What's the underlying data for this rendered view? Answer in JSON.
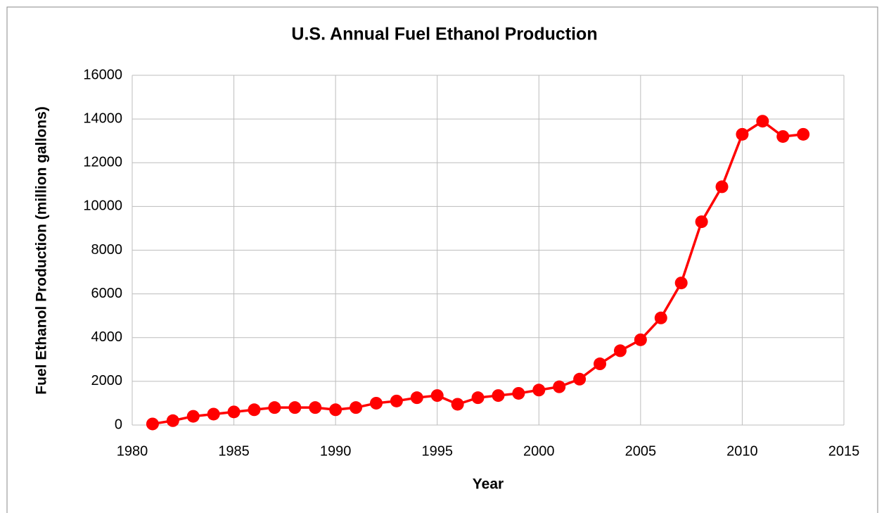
{
  "chart_data": {
    "type": "line",
    "title": "U.S. Annual Fuel Ethanol Production",
    "x_label": "Year",
    "y_label": "Fuel Ethanol Production  (million gallons)",
    "x": [
      1981,
      1982,
      1983,
      1984,
      1985,
      1986,
      1987,
      1988,
      1989,
      1990,
      1991,
      1992,
      1993,
      1994,
      1995,
      1996,
      1997,
      1998,
      1999,
      2000,
      2001,
      2002,
      2003,
      2004,
      2005,
      2006,
      2007,
      2008,
      2009,
      2010,
      2011,
      2012,
      2013
    ],
    "values": [
      50,
      200,
      400,
      500,
      600,
      700,
      800,
      800,
      800,
      700,
      800,
      1000,
      1100,
      1250,
      1350,
      950,
      1250,
      1350,
      1450,
      1600,
      1750,
      2100,
      2800,
      3400,
      3900,
      4900,
      6500,
      9300,
      10900,
      13300,
      13900,
      13200,
      13300
    ],
    "color": "#ff0000",
    "xlim": [
      1980,
      2015
    ],
    "xticks": [
      1980,
      1985,
      1990,
      1995,
      2000,
      2005,
      2010,
      2015
    ],
    "ylim": [
      0,
      16000
    ],
    "yticks": [
      0,
      2000,
      4000,
      6000,
      8000,
      10000,
      12000,
      14000,
      16000
    ],
    "grid": true
  }
}
